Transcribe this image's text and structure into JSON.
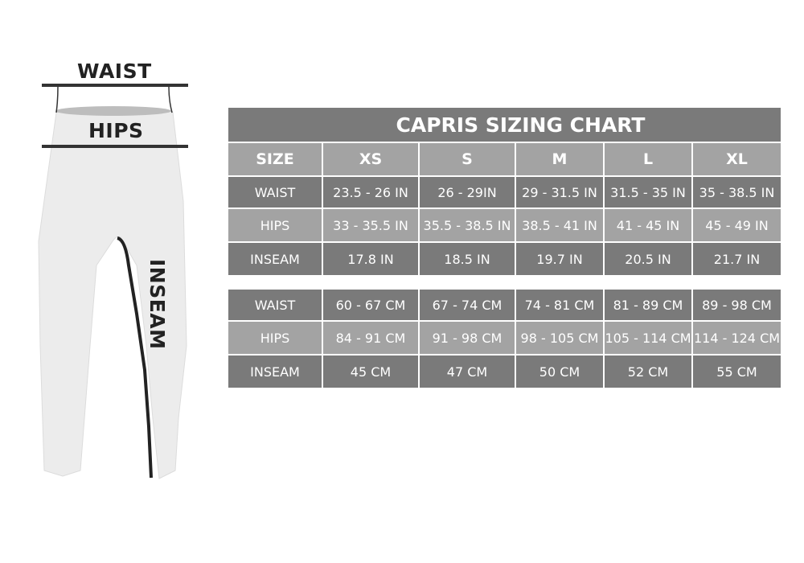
{
  "figure": {
    "waist_label": "WAIST",
    "hips_label": "HIPS",
    "inseam_label": "INSEAM"
  },
  "chart": {
    "title": "CAPRIS SIZING CHART",
    "header": [
      "SIZE",
      "XS",
      "S",
      "M",
      "L",
      "XL"
    ],
    "inches": [
      [
        "WAIST",
        "23.5 - 26 IN",
        "26 - 29IN",
        "29 - 31.5 IN",
        "31.5 - 35 IN",
        "35 - 38.5 IN"
      ],
      [
        "HIPS",
        "33 - 35.5 IN",
        "35.5 - 38.5 IN",
        "38.5 - 41 IN",
        "41 - 45 IN",
        "45 - 49 IN"
      ],
      [
        "INSEAM",
        "17.8 IN",
        "18.5 IN",
        "19.7 IN",
        "20.5 IN",
        "21.7 IN"
      ]
    ],
    "cm": [
      [
        "WAIST",
        "60 - 67 CM",
        "67 - 74 CM",
        "74 - 81 CM",
        "81 - 89 CM",
        "89 - 98 CM"
      ],
      [
        "HIPS",
        "84 - 91 CM",
        "91 - 98 CM",
        "98 - 105 CM",
        "105 - 114 CM",
        "114 - 124 CM"
      ],
      [
        "INSEAM",
        "45 CM",
        "47 CM",
        "50 CM",
        "52 CM",
        "55 CM"
      ]
    ]
  },
  "colors": {
    "dark_row": "#7a7a7a",
    "light_row": "#a3a3a3",
    "text": "#ffffff",
    "ink": "#222222"
  }
}
